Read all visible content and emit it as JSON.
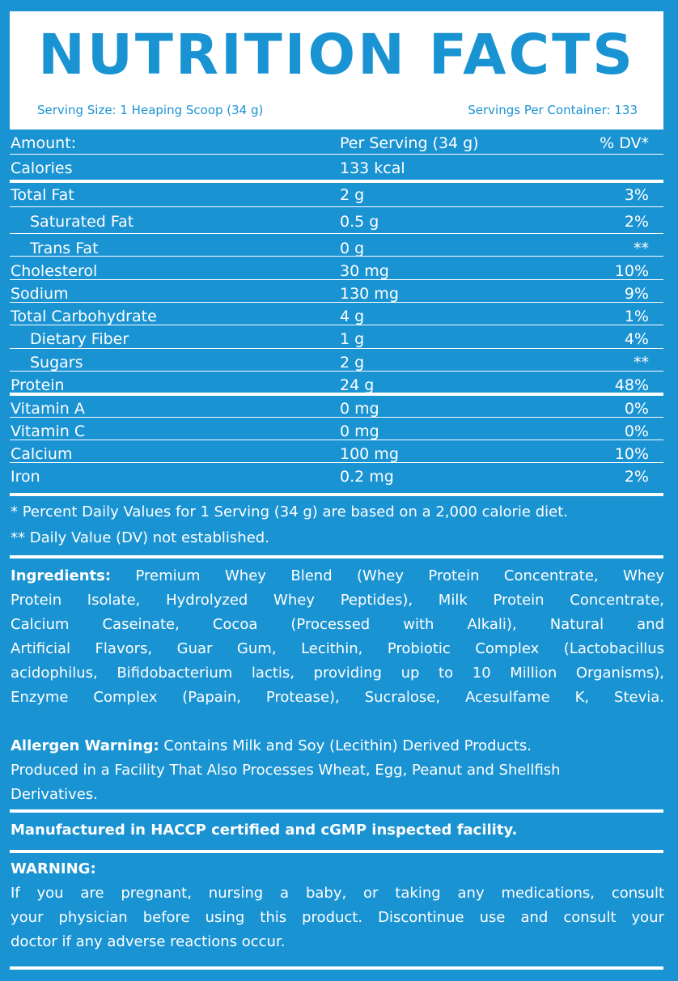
{
  "title": "NUTRITION FACTS",
  "serving_size": "Serving Size: 1 Heaping Scoop (34 g)",
  "servings_per_container": "Servings Per Container: 133",
  "table": {
    "header": {
      "amount": "Amount:",
      "per_serving": "Per Serving (34 g)",
      "dv": "% DV*"
    },
    "rows": [
      {
        "name": "Calories",
        "amount": "133 kcal",
        "dv": ""
      },
      {
        "name": "Total Fat",
        "amount": "2 g",
        "dv": "3%"
      },
      {
        "name": "Saturated Fat",
        "amount": "0.5 g",
        "dv": "2%"
      },
      {
        "name": "Trans Fat",
        "amount": "0 g",
        "dv": "**"
      },
      {
        "name": "Cholesterol",
        "amount": "30 mg",
        "dv": "10%"
      },
      {
        "name": "Sodium",
        "amount": "130 mg",
        "dv": "9%"
      },
      {
        "name": "Total Carbohydrate",
        "amount": "4 g",
        "dv": "1%"
      },
      {
        "name": "Dietary Fiber",
        "amount": "1 g",
        "dv": "4%"
      },
      {
        "name": "Sugars",
        "amount": "2 g",
        "dv": "**"
      },
      {
        "name": "Protein",
        "amount": "24 g",
        "dv": "48%"
      },
      {
        "name": "Vitamin A",
        "amount": "0 mg",
        "dv": "0%"
      },
      {
        "name": "Vitamin C",
        "amount": "0 mg",
        "dv": "0%"
      },
      {
        "name": "Calcium",
        "amount": "100 mg",
        "dv": "10%"
      },
      {
        "name": "Iron",
        "amount": "0.2 mg",
        "dv": "2%"
      }
    ]
  },
  "footnotes": {
    "dv_basis": "* Percent Daily Values for 1 Serving (34 g) are based on a 2,000 calorie diet.",
    "not_established": "** Daily Value (DV) not established."
  },
  "ingredients": {
    "label": "Ingredients:",
    "lines": [
      "Premium Whey Blend (Whey Protein Concentrate, Whey",
      "Protein Isolate, Hydrolyzed Whey Peptides), Milk Protein Concentrate,",
      "Calcium Caseinate, Cocoa (Processed with Alkali), Natural and",
      "Artificial Flavors, Guar Gum, Lecithin, Probiotic Complex (Lactobacillus",
      "acidophilus, Bifidobacterium lactis, providing up to 10 Million Organisms),",
      "Enzyme Complex (Papain, Protease), Sucralose, Acesulfame K, Stevia."
    ]
  },
  "allergen": {
    "label": "Allergen Warning:",
    "line1": "Contains Milk and Soy (Lecithin) Derived Products.",
    "line2": "Produced in a Facility That Also Processes Wheat, Egg, Peanut and Shellfish",
    "line3": "Derivatives."
  },
  "manufactured": "Manufactured in HACCP certified and cGMP inspected facility.",
  "warning": {
    "label": "WARNING:",
    "lines": [
      "If you are pregnant, nursing a baby, or taking any medications, consult",
      "your physician before using this product. Discontinue use and consult your",
      "doctor if any adverse reactions occur."
    ]
  },
  "colors": {
    "background": "#1a93d3",
    "panel": "#ffffff",
    "text": "#ffffff"
  }
}
